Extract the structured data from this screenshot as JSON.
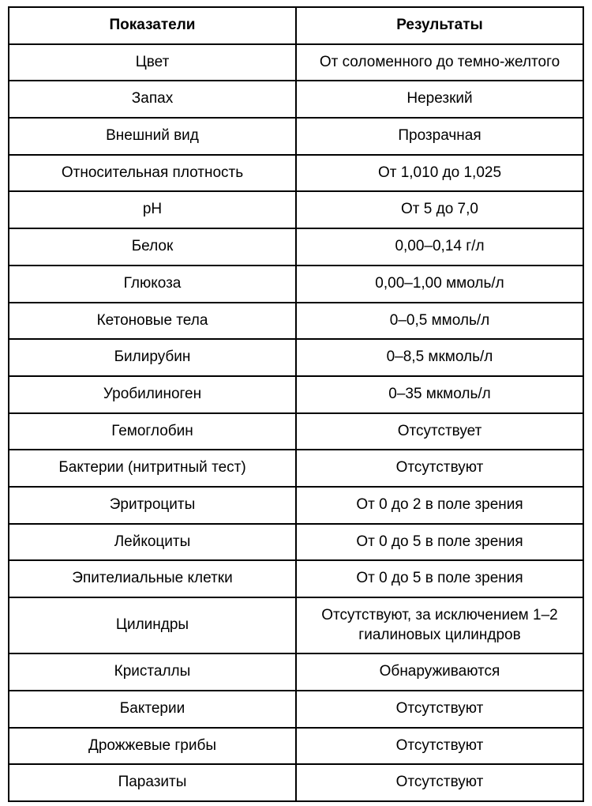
{
  "table": {
    "type": "table",
    "background_color": "#ffffff",
    "border_color": "#000000",
    "border_width": 2,
    "text_color": "#000000",
    "header_fontsize": 19,
    "header_fontweight": "bold",
    "cell_fontsize": 19,
    "cell_fontweight": "normal",
    "columns": [
      {
        "key": "indicator",
        "label": "Показатели",
        "width": "50%",
        "align": "center"
      },
      {
        "key": "result",
        "label": "Результаты",
        "width": "50%",
        "align": "center"
      }
    ],
    "rows": [
      {
        "indicator": "Цвет",
        "result": "От соломенного до темно-желтого"
      },
      {
        "indicator": "Запах",
        "result": "Нерезкий"
      },
      {
        "indicator": "Внешний вид",
        "result": "Прозрачная"
      },
      {
        "indicator": "Относительная плотность",
        "result": "От 1,010 до 1,025"
      },
      {
        "indicator": "pH",
        "result": "От 5 до 7,0"
      },
      {
        "indicator": "Белок",
        "result": "0,00–0,14 г/л"
      },
      {
        "indicator": "Глюкоза",
        "result": "0,00–1,00 ммоль/л"
      },
      {
        "indicator": "Кетоновые тела",
        "result": "0–0,5 ммоль/л"
      },
      {
        "indicator": "Билирубин",
        "result": "0–8,5 мкмоль/л"
      },
      {
        "indicator": "Уробилиноген",
        "result": "0–35 мкмоль/л"
      },
      {
        "indicator": "Гемоглобин",
        "result": "Отсутствует"
      },
      {
        "indicator": "Бактерии (нитритный тест)",
        "result": "Отсутствуют"
      },
      {
        "indicator": "Эритроциты",
        "result": "От 0 до 2 в поле зрения"
      },
      {
        "indicator": "Лейкоциты",
        "result": "От 0 до 5 в поле зрения"
      },
      {
        "indicator": "Эпителиальные клетки",
        "result": "От 0 до 5 в поле зрения"
      },
      {
        "indicator": "Цилиндры",
        "result": "Отсутствуют, за исключением 1–2 гиалиновых цилиндров"
      },
      {
        "indicator": "Кристаллы",
        "result": "Обнаруживаются"
      },
      {
        "indicator": "Бактерии",
        "result": "Отсутствуют"
      },
      {
        "indicator": "Дрожжевые грибы",
        "result": "Отсутствуют"
      },
      {
        "indicator": "Паразиты",
        "result": "Отсутствуют"
      }
    ]
  }
}
